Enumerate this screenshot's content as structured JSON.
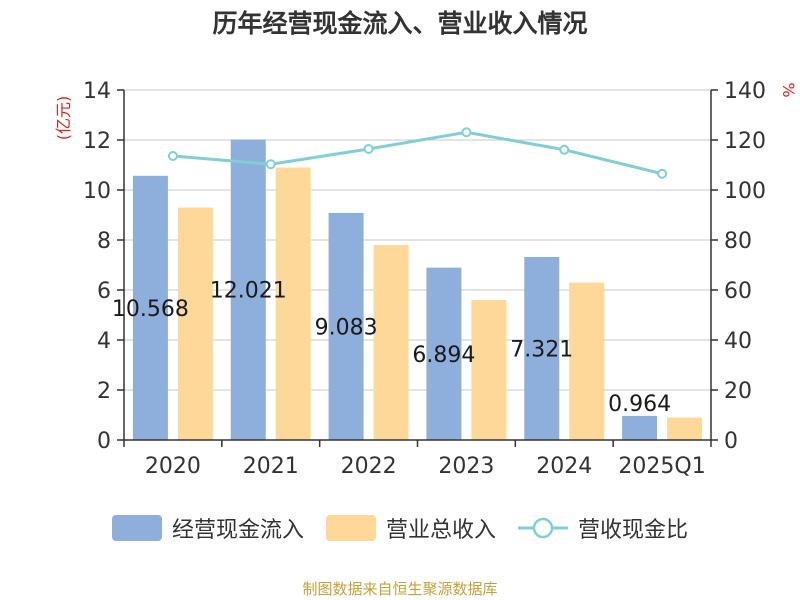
{
  "chart_data": {
    "type": "bar",
    "title": "历年经营现金流入、营业收入情况",
    "ylabel_left": "(亿元)",
    "ylabel_right": "%",
    "categories": [
      "2020",
      "2021",
      "2022",
      "2023",
      "2024",
      "2025Q1"
    ],
    "ylim_left": [
      0,
      14
    ],
    "yticks_left": [
      0,
      2,
      4,
      6,
      8,
      10,
      12,
      14
    ],
    "ylim_right": [
      0,
      140
    ],
    "yticks_right": [
      0,
      20,
      40,
      60,
      80,
      100,
      120,
      140
    ],
    "grid": true,
    "series": [
      {
        "name": "经营现金流入",
        "type": "bar",
        "axis": "left",
        "color": "#8eaedb",
        "values": [
          10.568,
          12.021,
          9.083,
          6.894,
          7.321,
          0.964
        ],
        "labels": [
          "10.568",
          "12.021",
          "9.083",
          "6.894",
          "7.321",
          "0.964"
        ]
      },
      {
        "name": "营业总收入",
        "type": "bar",
        "axis": "left",
        "color": "#fed898",
        "values": [
          9.3,
          10.9,
          7.8,
          5.6,
          6.3,
          0.9
        ]
      },
      {
        "name": "营收现金比",
        "type": "line",
        "axis": "right",
        "color": "#7ecfd6",
        "values": [
          113.6,
          110.3,
          116.4,
          123.1,
          116.1,
          106.5
        ]
      }
    ]
  },
  "legend": {
    "item1": "经营现金流入",
    "item2": "营业总收入",
    "item3": "营收现金比"
  },
  "source": "制图数据来自恒生聚源数据库"
}
